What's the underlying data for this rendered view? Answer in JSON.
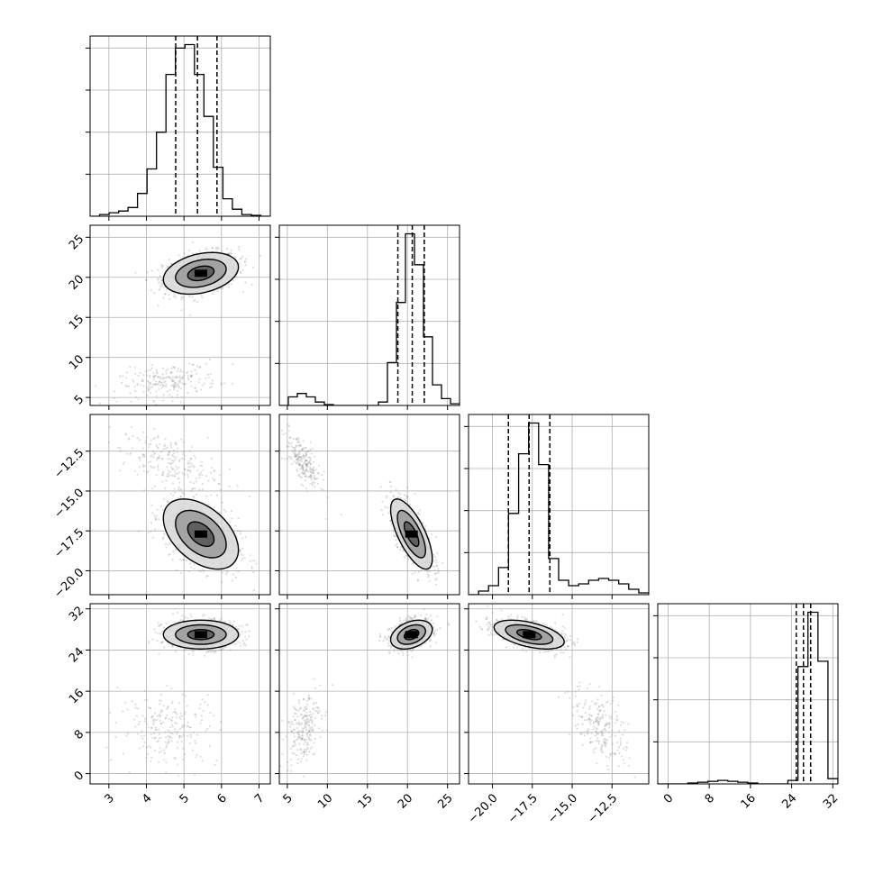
{
  "chart_data": {
    "type": "corner",
    "title": "",
    "params": [
      {
        "range": [
          2.5,
          7.3
        ],
        "ticks": [
          3,
          4,
          5,
          6,
          7
        ],
        "tick_labels": [
          "3",
          "4",
          "5",
          "6",
          "7"
        ],
        "quantiles": [
          4.78,
          5.36,
          5.88
        ],
        "hist_values": [
          0,
          0.01,
          0.02,
          0.03,
          0.05,
          0.13,
          0.27,
          0.48,
          0.81,
          0.96,
          0.98,
          0.81,
          0.57,
          0.28,
          0.1,
          0.04,
          0.01,
          0.005,
          0
        ]
      },
      {
        "range": [
          4,
          26.5
        ],
        "ticks": [
          5,
          10,
          15,
          20,
          25
        ],
        "tick_labels": [
          "5",
          "10",
          "15",
          "20",
          "25"
        ],
        "quantiles": [
          18.8,
          20.6,
          22.1
        ],
        "hist_values": [
          0,
          0.05,
          0.07,
          0.05,
          0.02,
          0.005,
          0,
          0,
          0,
          0,
          0,
          0.02,
          0.25,
          0.6,
          1.0,
          0.82,
          0.4,
          0.12,
          0.04,
          0.01
        ]
      },
      {
        "range": [
          -21.5,
          -10.2
        ],
        "ticks": [
          -20.0,
          -17.5,
          -15.0,
          -12.5
        ],
        "tick_labels": [
          "−20.0",
          "−17.5",
          "−15.0",
          "−12.5"
        ],
        "quantiles": [
          -19.0,
          -17.7,
          -16.4
        ],
        "hist_values": [
          0,
          0.02,
          0.05,
          0.15,
          0.45,
          0.78,
          0.95,
          0.72,
          0.2,
          0.08,
          0.05,
          0.06,
          0.08,
          0.09,
          0.08,
          0.06,
          0.03,
          0.01
        ]
      },
      {
        "range": [
          -2,
          33
        ],
        "ticks": [
          0,
          8,
          16,
          24,
          32
        ],
        "tick_labels": [
          "0",
          "8",
          "16",
          "24",
          "32"
        ],
        "quantiles": [
          24.9,
          26.3,
          27.7
        ],
        "hist_values": [
          0,
          0,
          0,
          0.005,
          0.01,
          0.015,
          0.02,
          0.015,
          0.01,
          0.005,
          0,
          0,
          0,
          0.02,
          0.67,
          0.98,
          0.7,
          0.03
        ]
      }
    ],
    "modes": [
      {
        "weight": 0.8,
        "mean": [
          5.45,
          20.5,
          -17.7,
          27.0
        ],
        "sd": [
          0.5,
          1.3,
          1.1,
          1.4
        ]
      },
      {
        "weight": 0.2,
        "mean": [
          4.6,
          7.0,
          -13.2,
          9.0
        ],
        "sd": [
          0.65,
          1.1,
          0.9,
          3.6
        ]
      }
    ],
    "corr": [
      [
        [
          0,
          1
        ],
        0.3
      ],
      [
        [
          0,
          2
        ],
        -0.45
      ],
      [
        [
          1,
          2
        ],
        -0.7
      ],
      [
        [
          1,
          3
        ],
        0.35
      ],
      [
        [
          2,
          3
        ],
        -0.5
      ]
    ],
    "grid": true,
    "legend": "none"
  }
}
